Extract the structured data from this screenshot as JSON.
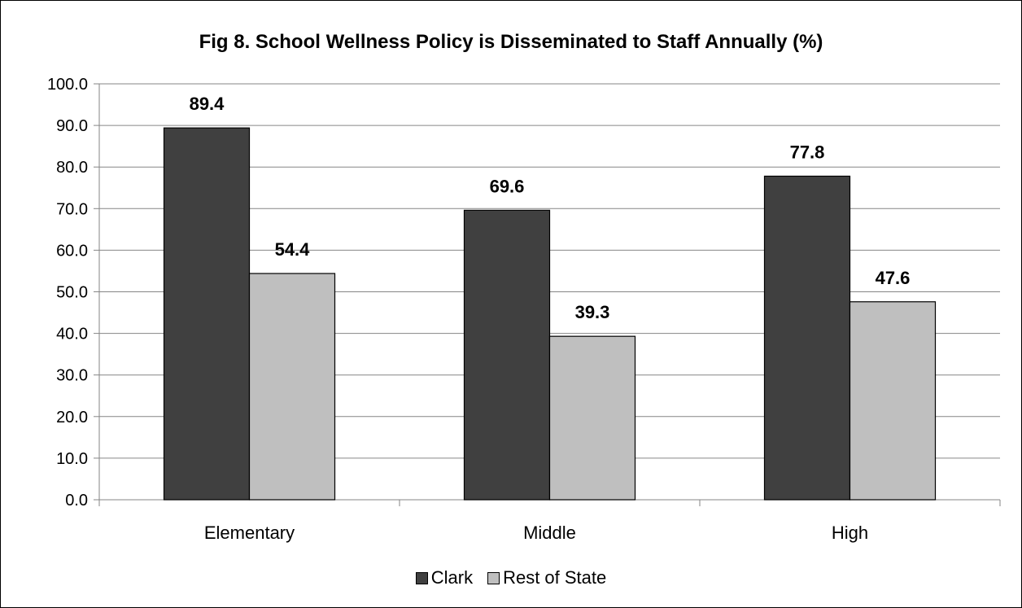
{
  "chart_data": {
    "type": "bar",
    "title": "Fig 8. School Wellness Policy is Disseminated to Staff Annually (%)",
    "xlabel": "",
    "ylabel": "",
    "categories": [
      "Elementary",
      "Middle",
      "High"
    ],
    "series": [
      {
        "name": "Clark",
        "values": [
          89.4,
          69.6,
          77.8
        ],
        "color": "#404040"
      },
      {
        "name": "Rest of State",
        "values": [
          54.4,
          39.3,
          47.6
        ],
        "color": "#bfbfbf"
      }
    ],
    "ylim": [
      0,
      100
    ],
    "yticks": [
      "0.0",
      "10.0",
      "20.0",
      "30.0",
      "40.0",
      "50.0",
      "60.0",
      "70.0",
      "80.0",
      "90.0",
      "100.0"
    ],
    "data_labels": [
      "89.4",
      "69.6",
      "77.8",
      "54.4",
      "39.3",
      "47.6"
    ],
    "grid": true,
    "legend_position": "bottom"
  }
}
